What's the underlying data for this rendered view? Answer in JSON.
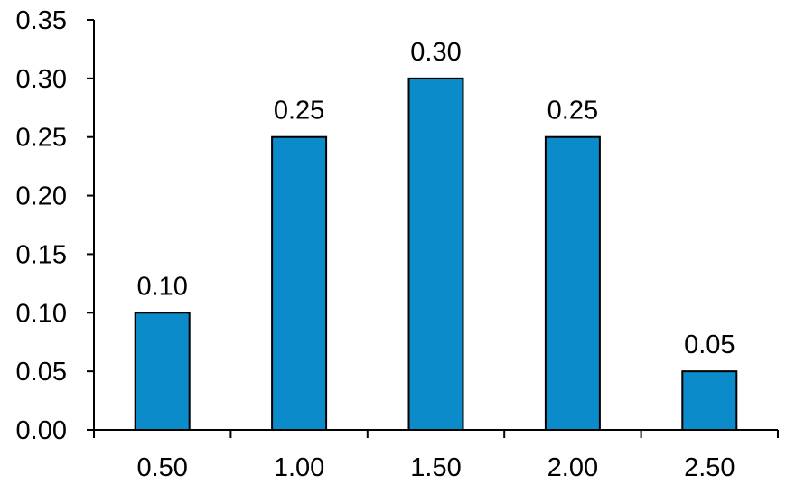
{
  "chart_data": {
    "type": "bar",
    "categories": [
      "0.50",
      "1.00",
      "1.50",
      "2.00",
      "2.50"
    ],
    "values": [
      0.1,
      0.25,
      0.3,
      0.25,
      0.05
    ],
    "data_labels": [
      "0.10",
      "0.25",
      "0.30",
      "0.25",
      "0.05"
    ],
    "y_ticks": [
      "0.00",
      "0.05",
      "0.10",
      "0.15",
      "0.20",
      "0.25",
      "0.30",
      "0.35"
    ],
    "ylim": [
      0,
      0.35
    ],
    "title": "",
    "xlabel": "",
    "ylabel": "",
    "grid": false,
    "legend": "none",
    "colors": {
      "bar": "#0b8bca",
      "bar_outline": "#000000",
      "axis": "#000000"
    }
  }
}
